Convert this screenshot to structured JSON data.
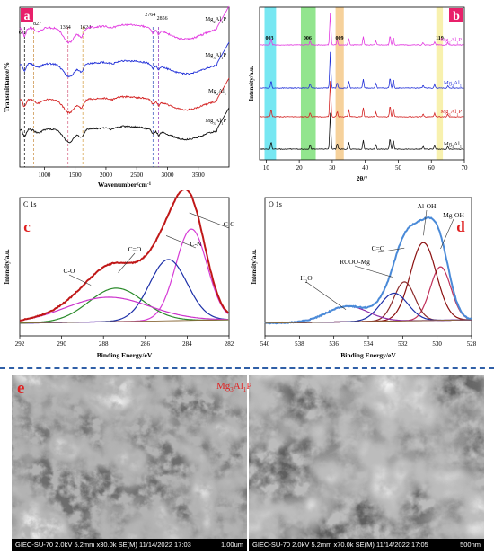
{
  "chart_data": [
    {
      "panel": "a",
      "type": "line",
      "ylabel": "Transmittance/%",
      "xlabel": "Wavenumber/cm",
      "xlabel_sup": "-1",
      "x_ticks": [
        1000,
        1500,
        2000,
        2500,
        3000,
        3500
      ],
      "xlim": [
        600,
        4000
      ],
      "annotations": [
        "677",
        "827",
        "1384",
        "1624",
        "2764",
        "2856"
      ],
      "annotation_x": [
        677,
        827,
        1384,
        1624,
        2764,
        2856
      ],
      "series": [
        {
          "name": "Mg",
          "sub1": "2",
          "mid": "Al",
          "sub2": "1",
          "tail": "P",
          "color": "#e23be0"
        },
        {
          "name": "Mg",
          "sub1": "3",
          "mid": "Al",
          "sub2": "1",
          "tail": "P",
          "color": "#2130d8"
        },
        {
          "name": "Mg",
          "sub1": "2",
          "mid": "Al",
          "sub2": "1",
          "tail": "",
          "color": "#d42424"
        },
        {
          "name": "Mg",
          "sub1": "3",
          "mid": "Al",
          "sub2": "1",
          "tail": "P",
          "color": "#111111"
        }
      ]
    },
    {
      "panel": "b",
      "type": "line",
      "ylabel": "Intensity/a.u.",
      "xlabel": "2θ/°",
      "x_ticks": [
        10,
        20,
        30,
        40,
        50,
        60,
        70
      ],
      "xlim": [
        8,
        70
      ],
      "annotations": [
        "003",
        "006",
        "009",
        "110"
      ],
      "bands": [
        {
          "from": 9.5,
          "to": 13,
          "color": "#5fe3f0"
        },
        {
          "from": 20.5,
          "to": 25,
          "color": "#7fe07a"
        },
        {
          "from": 31,
          "to": 33.5,
          "color": "#f5c98a"
        },
        {
          "from": 61.5,
          "to": 63.5,
          "color": "#f7eea0"
        }
      ],
      "series": [
        {
          "name": "Mg",
          "sub1": "2",
          "mid": "Al",
          "sub2": "1",
          "tail": "P",
          "color": "#e23be0"
        },
        {
          "name": "Mg",
          "sub1": "2",
          "mid": "Al",
          "sub2": "1",
          "tail": "",
          "color": "#2130d8"
        },
        {
          "name": "Mg",
          "sub1": "3",
          "mid": "Al",
          "sub2": "1",
          "tail": "P",
          "color": "#d42424"
        },
        {
          "name": "Mg",
          "sub1": "3",
          "mid": "Al",
          "sub2": "1",
          "tail": "",
          "color": "#111111"
        }
      ]
    },
    {
      "panel": "c",
      "type": "line",
      "title": "C 1s",
      "ylabel": "Intensity/a.u.",
      "xlabel": "Binding Energy/eV",
      "x_ticks": [
        292,
        290,
        288,
        286,
        284,
        282
      ],
      "xlim": [
        292,
        282
      ],
      "peaks": [
        {
          "label": "C-C",
          "center": 283.8,
          "height": 0.82,
          "width": 0.75,
          "color": "#d63cd6"
        },
        {
          "label": "C-N",
          "center": 284.9,
          "height": 0.55,
          "width": 0.9,
          "color": "#1c2fa8"
        },
        {
          "label": "C=O",
          "center": 287.4,
          "height": 0.3,
          "width": 1.3,
          "color": "#2a8a2a"
        },
        {
          "label": "C-O",
          "center": 287.8,
          "height": 0.22,
          "width": 2.0,
          "color": "#cc33cc"
        }
      ],
      "envelope_color": "#c01818"
    },
    {
      "panel": "d",
      "type": "line",
      "title": "O 1s",
      "ylabel": "Intensity/a.u.",
      "xlabel": "Binding Energy/eV",
      "x_ticks": [
        540,
        538,
        536,
        534,
        532,
        530,
        528
      ],
      "xlim": [
        540,
        528
      ],
      "peaks": [
        {
          "label": "Mg-OH",
          "center": 529.8,
          "height": 0.48,
          "width": 0.6,
          "color": "#c0305a"
        },
        {
          "label": "Al-OH",
          "center": 530.8,
          "height": 0.7,
          "width": 0.75,
          "color": "#8b1010"
        },
        {
          "label": "C=O",
          "center": 531.9,
          "height": 0.35,
          "width": 0.6,
          "color": "#8b2a2a"
        },
        {
          "label": "RCOO-Mg",
          "center": 532.5,
          "height": 0.25,
          "width": 0.8,
          "color": "#1c2fa8"
        },
        {
          "label": "H",
          "label_sub": "2",
          "label_tail": "O",
          "center": 535.2,
          "height": 0.14,
          "width": 1.2,
          "color": "#8a2aa8"
        }
      ],
      "envelope_color": "#4a8ad8"
    }
  ],
  "panel_letters": {
    "a": "a",
    "b": "b",
    "c": "c",
    "d": "d",
    "e": "e"
  },
  "sem": {
    "overlay_label": "Mg",
    "overlay_sub1": "3",
    "overlay_mid": "Al",
    "overlay_sub2": "1",
    "overlay_tail": "P",
    "left": {
      "info": "GIEC-SU-70 2.0kV 5.2mm x30.0k SE(M) 11/14/2022 17:03",
      "scale": "1.00um"
    },
    "right": {
      "info": "GIEC-SU-70 2.0kV 5.2mm x70.0k SE(M) 11/14/2022 17:05",
      "scale": "500nm"
    }
  },
  "colors": {
    "letter_bg_a": "#e8206a",
    "letter_bg_b": "#e8206a",
    "divider": "#2f5fa7"
  }
}
